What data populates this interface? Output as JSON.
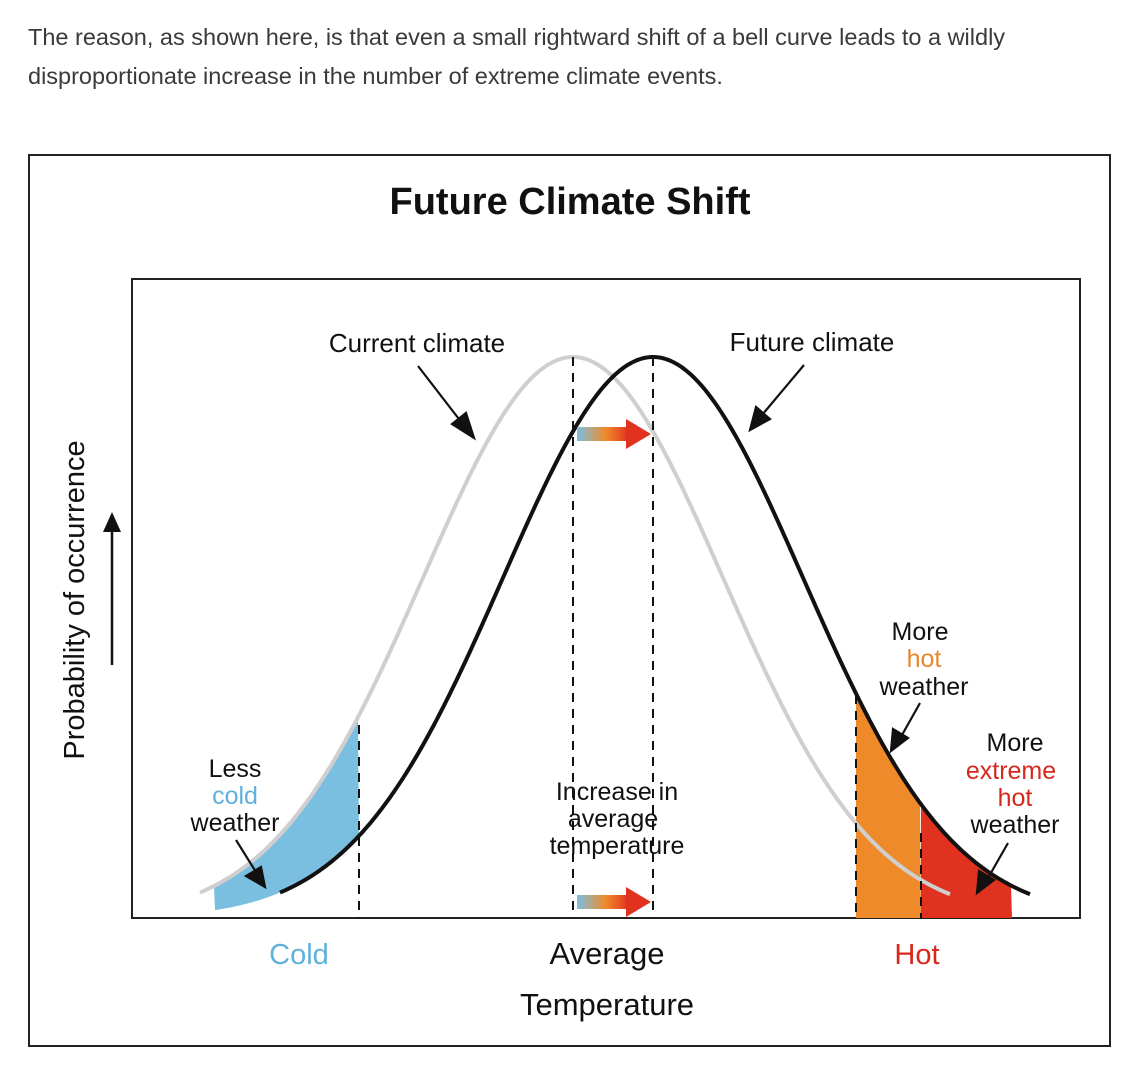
{
  "caption": {
    "line1": "The reason, as shown here, is that even a small rightward shift of a bell curve leads to a wildly",
    "line2": "disproportionate increase in the number of extreme climate events."
  },
  "figure": {
    "title": "Future Climate Shift",
    "y_axis_label": "Probability of occurrence",
    "x_axis_label_line1": "Average",
    "x_axis_label_line2": "Temperature",
    "tick_cold": "Cold",
    "tick_hot": "Hot",
    "label_current": "Current climate",
    "label_future": "Future climate",
    "less_cold": [
      "Less",
      "cold",
      "weather"
    ],
    "more_hot": [
      "More",
      "hot",
      "weather"
    ],
    "more_extreme": [
      "More",
      "extreme",
      "hot",
      "weather"
    ],
    "increase": [
      "Increase in",
      "average",
      "temperature"
    ]
  },
  "colors": {
    "cold": "#7bbfe0",
    "cold_text": "#5fb1dc",
    "hot": "#ef8a2b",
    "extreme": "#e0321e",
    "extreme_text": "#d8281e",
    "hot_text": "#e8872c",
    "current_curve": "#cfcfcf",
    "future_curve": "#111111"
  }
}
